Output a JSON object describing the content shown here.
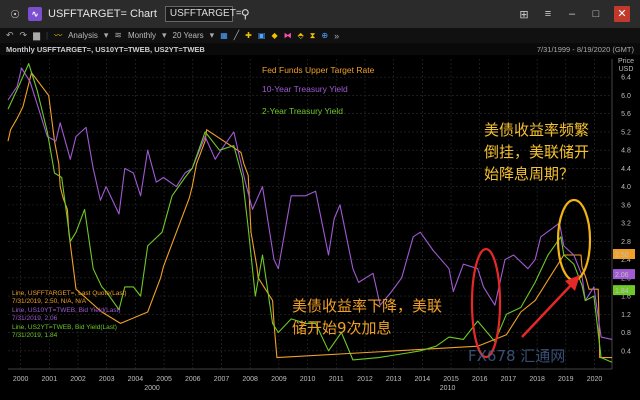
{
  "window": {
    "title": "USFFTARGET= Chart",
    "symbol_input": "USFFTARGET=",
    "buttons": [
      "pin-icon",
      "app-icon",
      "search-icon",
      "layout-icon",
      "menu-icon",
      "minimize-icon",
      "maximize-icon",
      "close-icon"
    ]
  },
  "toolbar": {
    "analysis_label": "Analysis",
    "interval_label": "Monthly",
    "range_label": "20 Years"
  },
  "infobar": {
    "left": "Monthly USFFTARGET=, US10YT=TWEB, US2YT=TWEB",
    "right": "7/31/1999 - 8/19/2020 (GMT)"
  },
  "colors": {
    "fed": "#f0a028",
    "ten_year": "#a05ad2",
    "two_year": "#6ec828",
    "annotation_red": "#e62828",
    "annotation_yellow": "#f0b414",
    "note_text": "#f0a028",
    "note_text_yellow": "#f5c030"
  },
  "legend_small": [
    {
      "line1": "Line, USFFTARGET=, Last Quote(Last)",
      "line2": "7/31/2019, 2.50, N/A, N/A"
    },
    {
      "line1": "Line, US10YT=TWEB, Bid Yield(Last)",
      "line2": "7/31/2019, 2.06"
    },
    {
      "line1": "Line, US2YT=TWEB, Bid Yield(Last)",
      "line2": "7/31/2019, 1.84"
    }
  ],
  "annotations": {
    "note_top": [
      "美债收益率频繁",
      "倒挂，美联储开",
      "始降息周期？"
    ],
    "note_bottom": [
      "美债收益率下降，美联",
      "储开始9次加息"
    ]
  },
  "watermark": "FX678 汇通网",
  "chart_data": {
    "type": "line",
    "x_unit": "year (decimal)",
    "xlim": [
      1999.58,
      2020.63
    ],
    "ylim": [
      0,
      6.8
    ],
    "yaxis_label": "Price USD",
    "yticks": [
      0.4,
      0.8,
      1.2,
      1.6,
      2.0,
      2.4,
      2.8,
      3.2,
      3.6,
      4.0,
      4.4,
      4.8,
      5.2,
      5.6,
      6.0,
      6.4
    ],
    "xticks": [
      "2000",
      "2001",
      "2002",
      "2003",
      "2004",
      "2005",
      "2006",
      "2007",
      "2008",
      "2009",
      "2010",
      "2011",
      "2012",
      "2013",
      "2014",
      "2015",
      "2016",
      "2017",
      "2018",
      "2019",
      "2020"
    ],
    "xaxis_sublabels": [
      "2000",
      "2010"
    ],
    "last_values": [
      {
        "label": "2.50",
        "series": "fed"
      },
      {
        "label": "2.06",
        "series": "ten_year"
      },
      {
        "label": "1.84",
        "series": "two_year"
      }
    ],
    "series": [
      {
        "name": "Fed Funds Upper Target Rate",
        "key": "fed",
        "points": [
          [
            1999.58,
            5.0
          ],
          [
            1999.67,
            5.25
          ],
          [
            1999.9,
            5.5
          ],
          [
            2000.1,
            5.75
          ],
          [
            2000.2,
            6.0
          ],
          [
            2000.4,
            6.5
          ],
          [
            2001.0,
            6.0
          ],
          [
            2001.1,
            5.5
          ],
          [
            2001.2,
            5.0
          ],
          [
            2001.35,
            4.5
          ],
          [
            2001.4,
            4.0
          ],
          [
            2001.5,
            3.75
          ],
          [
            2001.65,
            3.5
          ],
          [
            2001.7,
            3.0
          ],
          [
            2001.8,
            2.5
          ],
          [
            2001.9,
            2.0
          ],
          [
            2001.95,
            1.75
          ],
          [
            2002.85,
            1.25
          ],
          [
            2003.5,
            1.0
          ],
          [
            2004.45,
            1.25
          ],
          [
            2004.6,
            1.5
          ],
          [
            2004.75,
            1.75
          ],
          [
            2004.9,
            2.0
          ],
          [
            2005.0,
            2.25
          ],
          [
            2005.15,
            2.5
          ],
          [
            2005.3,
            2.75
          ],
          [
            2005.45,
            3.0
          ],
          [
            2005.6,
            3.25
          ],
          [
            2005.75,
            3.5
          ],
          [
            2005.9,
            3.75
          ],
          [
            2006.0,
            4.0
          ],
          [
            2006.15,
            4.5
          ],
          [
            2006.3,
            4.75
          ],
          [
            2006.45,
            5.0
          ],
          [
            2006.5,
            5.25
          ],
          [
            2007.7,
            4.75
          ],
          [
            2007.8,
            4.5
          ],
          [
            2007.95,
            4.25
          ],
          [
            2008.05,
            3.0
          ],
          [
            2008.25,
            2.25
          ],
          [
            2008.3,
            2.0
          ],
          [
            2008.8,
            1.5
          ],
          [
            2008.85,
            1.0
          ],
          [
            2008.95,
            0.25
          ],
          [
            2015.95,
            0.5
          ],
          [
            2016.95,
            0.75
          ],
          [
            2017.2,
            1.0
          ],
          [
            2017.45,
            1.25
          ],
          [
            2017.95,
            1.5
          ],
          [
            2018.2,
            1.75
          ],
          [
            2018.45,
            2.0
          ],
          [
            2018.7,
            2.25
          ],
          [
            2018.95,
            2.5
          ],
          [
            2019.55,
            2.5
          ],
          [
            2019.58,
            2.25
          ],
          [
            2019.72,
            2.0
          ],
          [
            2019.83,
            1.75
          ],
          [
            2020.15,
            1.75
          ],
          [
            2020.17,
            1.25
          ],
          [
            2020.2,
            0.25
          ],
          [
            2020.63,
            0.25
          ]
        ]
      },
      {
        "name": "10-Year Treasury Yield",
        "key": "ten_year",
        "points": [
          [
            1999.58,
            5.9
          ],
          [
            1999.9,
            6.2
          ],
          [
            2000.05,
            6.6
          ],
          [
            2000.35,
            6.3
          ],
          [
            2000.6,
            5.8
          ],
          [
            2000.95,
            5.1
          ],
          [
            2001.25,
            5.0
          ],
          [
            2001.4,
            5.4
          ],
          [
            2001.75,
            4.6
          ],
          [
            2001.95,
            5.1
          ],
          [
            2002.3,
            5.3
          ],
          [
            2002.55,
            4.4
          ],
          [
            2002.8,
            3.7
          ],
          [
            2003.0,
            4.0
          ],
          [
            2003.45,
            3.4
          ],
          [
            2003.65,
            4.4
          ],
          [
            2003.95,
            4.3
          ],
          [
            2004.2,
            3.8
          ],
          [
            2004.45,
            4.8
          ],
          [
            2004.75,
            4.1
          ],
          [
            2005.0,
            4.2
          ],
          [
            2005.45,
            4.0
          ],
          [
            2005.75,
            4.3
          ],
          [
            2006.0,
            4.4
          ],
          [
            2006.45,
            5.1
          ],
          [
            2006.8,
            4.6
          ],
          [
            2007.0,
            4.8
          ],
          [
            2007.45,
            5.2
          ],
          [
            2007.85,
            4.1
          ],
          [
            2008.1,
            3.5
          ],
          [
            2008.45,
            4.0
          ],
          [
            2008.85,
            2.4
          ],
          [
            2009.0,
            2.2
          ],
          [
            2009.45,
            3.8
          ],
          [
            2009.95,
            3.8
          ],
          [
            2010.3,
            3.9
          ],
          [
            2010.75,
            2.5
          ],
          [
            2010.95,
            3.3
          ],
          [
            2011.15,
            3.6
          ],
          [
            2011.6,
            2.2
          ],
          [
            2011.8,
            1.9
          ],
          [
            2012.3,
            2.1
          ],
          [
            2012.55,
            1.4
          ],
          [
            2012.95,
            1.7
          ],
          [
            2013.3,
            2.0
          ],
          [
            2013.7,
            2.9
          ],
          [
            2013.95,
            3.0
          ],
          [
            2014.4,
            2.6
          ],
          [
            2014.95,
            2.2
          ],
          [
            2015.1,
            1.7
          ],
          [
            2015.45,
            2.3
          ],
          [
            2015.95,
            2.2
          ],
          [
            2016.15,
            1.8
          ],
          [
            2016.55,
            1.4
          ],
          [
            2016.9,
            2.4
          ],
          [
            2017.2,
            2.5
          ],
          [
            2017.7,
            2.2
          ],
          [
            2017.95,
            2.4
          ],
          [
            2018.15,
            2.9
          ],
          [
            2018.8,
            3.2
          ],
          [
            2018.95,
            2.7
          ],
          [
            2019.3,
            2.5
          ],
          [
            2019.58,
            2.06
          ],
          [
            2019.7,
            1.5
          ],
          [
            2020.0,
            1.8
          ],
          [
            2020.25,
            0.7
          ],
          [
            2020.63,
            0.65
          ]
        ]
      },
      {
        "name": "2-Year Treasury Yield",
        "key": "two_year",
        "points": [
          [
            1999.58,
            5.7
          ],
          [
            1999.95,
            6.2
          ],
          [
            2000.3,
            6.7
          ],
          [
            2000.6,
            6.1
          ],
          [
            2000.95,
            5.2
          ],
          [
            2001.2,
            4.3
          ],
          [
            2001.45,
            4.2
          ],
          [
            2001.75,
            2.8
          ],
          [
            2001.95,
            3.0
          ],
          [
            2002.25,
            3.5
          ],
          [
            2002.55,
            2.2
          ],
          [
            2002.85,
            1.8
          ],
          [
            2003.0,
            1.7
          ],
          [
            2003.45,
            1.3
          ],
          [
            2003.65,
            1.8
          ],
          [
            2003.95,
            1.8
          ],
          [
            2004.2,
            1.6
          ],
          [
            2004.45,
            2.7
          ],
          [
            2004.95,
            3.0
          ],
          [
            2005.3,
            3.8
          ],
          [
            2005.75,
            4.2
          ],
          [
            2006.0,
            4.4
          ],
          [
            2006.45,
            5.2
          ],
          [
            2006.95,
            4.8
          ],
          [
            2007.45,
            4.9
          ],
          [
            2007.75,
            4.2
          ],
          [
            2007.95,
            3.1
          ],
          [
            2008.2,
            1.6
          ],
          [
            2008.45,
            2.5
          ],
          [
            2008.8,
            1.0
          ],
          [
            2009.0,
            0.8
          ],
          [
            2009.45,
            1.1
          ],
          [
            2009.95,
            1.0
          ],
          [
            2010.3,
            1.0
          ],
          [
            2010.75,
            0.4
          ],
          [
            2011.2,
            0.8
          ],
          [
            2011.6,
            0.2
          ],
          [
            2012.5,
            0.25
          ],
          [
            2013.5,
            0.35
          ],
          [
            2013.95,
            0.4
          ],
          [
            2014.5,
            0.5
          ],
          [
            2014.95,
            0.7
          ],
          [
            2015.45,
            0.65
          ],
          [
            2015.95,
            1.05
          ],
          [
            2016.55,
            0.6
          ],
          [
            2016.95,
            1.2
          ],
          [
            2017.45,
            1.35
          ],
          [
            2017.95,
            1.9
          ],
          [
            2018.4,
            2.5
          ],
          [
            2018.85,
            2.9
          ],
          [
            2018.95,
            2.5
          ],
          [
            2019.3,
            2.3
          ],
          [
            2019.58,
            1.84
          ],
          [
            2019.7,
            1.5
          ],
          [
            2020.0,
            1.6
          ],
          [
            2020.25,
            0.25
          ],
          [
            2020.63,
            0.15
          ]
        ]
      }
    ]
  }
}
